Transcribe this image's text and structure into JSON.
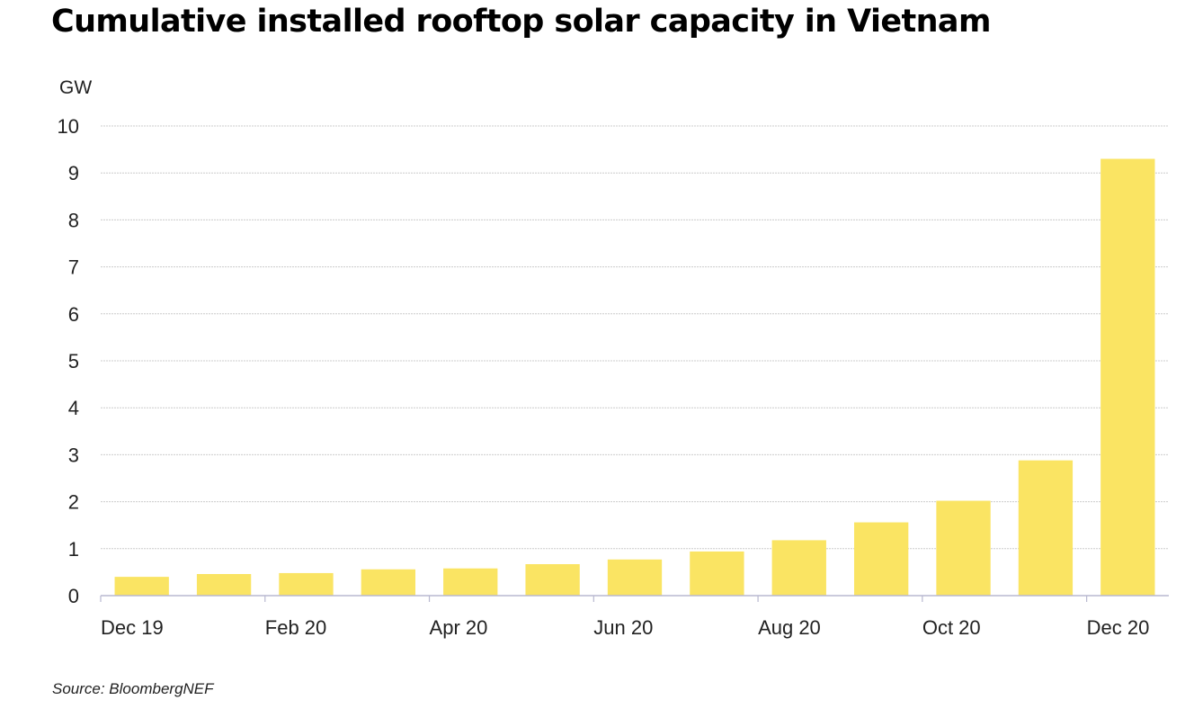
{
  "chart_data": {
    "type": "bar",
    "title": "Cumulative installed rooftop solar capacity in Vietnam",
    "ylabel": "GW",
    "xlabel": "",
    "source": "Source: BloombergNEF",
    "categories": [
      "Dec 19",
      "Jan 20",
      "Feb 20",
      "Mar 20",
      "Apr 20",
      "May 20",
      "Jun 20",
      "Jul 20",
      "Aug 20",
      "Sep 20",
      "Oct 20",
      "Nov 20",
      "Dec 20"
    ],
    "x_tick_labels": [
      "Dec 19",
      "Feb 20",
      "Apr 20",
      "Jun 20",
      "Aug 20",
      "Oct 20",
      "Dec 20"
    ],
    "values": [
      0.4,
      0.46,
      0.48,
      0.56,
      0.58,
      0.67,
      0.77,
      0.94,
      1.18,
      1.56,
      2.02,
      2.88,
      9.3
    ],
    "ylim": [
      0,
      10
    ],
    "y_ticks": [
      0,
      1,
      2,
      3,
      4,
      5,
      6,
      7,
      8,
      9,
      10
    ],
    "grid": true,
    "legend": "none",
    "colors": {
      "bar": "#FAE463",
      "grid": "#CCCCCC",
      "axis": "#B8B8D0"
    }
  }
}
